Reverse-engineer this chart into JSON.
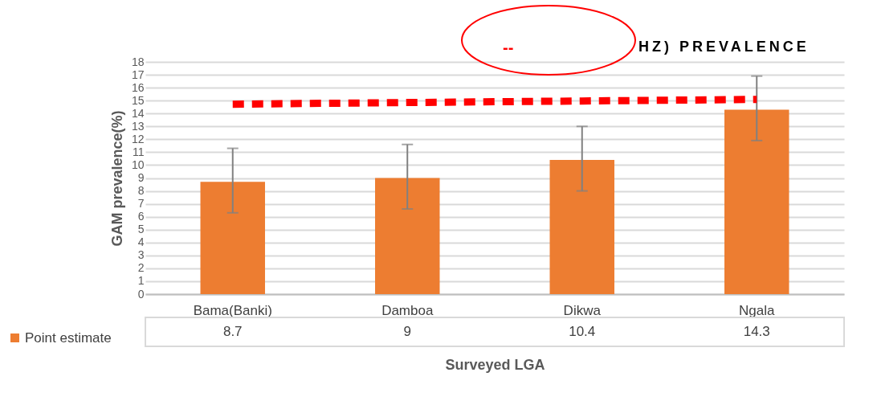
{
  "chart_data": {
    "type": "bar",
    "title": "HZ) PREVALENCE",
    "annotations": [
      "--"
    ],
    "xlabel": "Surveyed LGA",
    "ylabel": "GAM prevalence(%)",
    "categories": [
      "Bama(Banki)",
      "Damboa",
      "Dikwa",
      "Ngala"
    ],
    "series": [
      {
        "name": "Point estimate",
        "color": "#ed7d31",
        "values": [
          8.7,
          9,
          10.4,
          14.3
        ],
        "value_labels": [
          "8.7",
          "9",
          "10.4",
          "14.3"
        ],
        "errors": [
          [
            6.3,
            11.3
          ],
          [
            6.6,
            11.6
          ],
          [
            8.0,
            13.0
          ],
          [
            11.9,
            16.9
          ]
        ]
      },
      {
        "type": "line",
        "color": "#ff0000",
        "line_style": "dashed",
        "values": [
          14.72,
          14.85,
          14.97,
          15.09
        ]
      }
    ],
    "ylim": [
      0,
      18
    ],
    "yticks": [
      0,
      1,
      2,
      3,
      4,
      5,
      6,
      7,
      8,
      9,
      10,
      11,
      12,
      13,
      14,
      15,
      16,
      17,
      18
    ],
    "grid": "y",
    "legend": "bottom left"
  }
}
